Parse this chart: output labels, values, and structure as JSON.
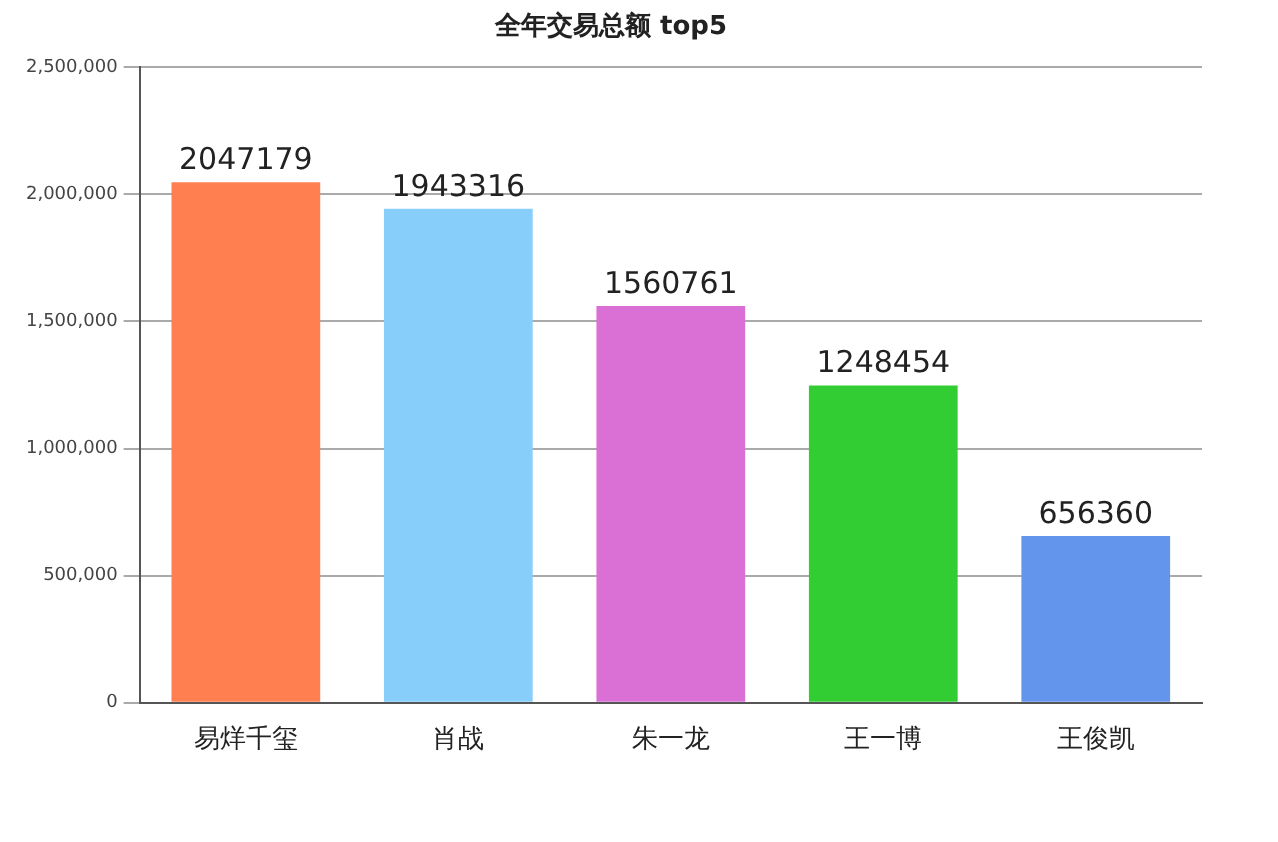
{
  "chart_data": {
    "type": "bar",
    "title": "全年交易总额 top5",
    "categories": [
      "易烊千玺",
      "肖战",
      "朱一龙",
      "王一博",
      "王俊凯"
    ],
    "values": [
      2047179,
      1943316,
      1560761,
      1248454,
      656360
    ],
    "colors": [
      "#ff7f50",
      "#87cefa",
      "#da70d6",
      "#32cd32",
      "#6495ed"
    ],
    "ylim": [
      0,
      2500000
    ],
    "yticks": [
      {
        "value": 0,
        "label": "0"
      },
      {
        "value": 500000,
        "label": "500,000"
      },
      {
        "value": 1000000,
        "label": "1,000,000"
      },
      {
        "value": 1500000,
        "label": "1,500,000"
      },
      {
        "value": 2000000,
        "label": "2,000,000"
      },
      {
        "value": 2500000,
        "label": "2,500,000"
      }
    ],
    "grid": "y",
    "data_labels": true
  }
}
